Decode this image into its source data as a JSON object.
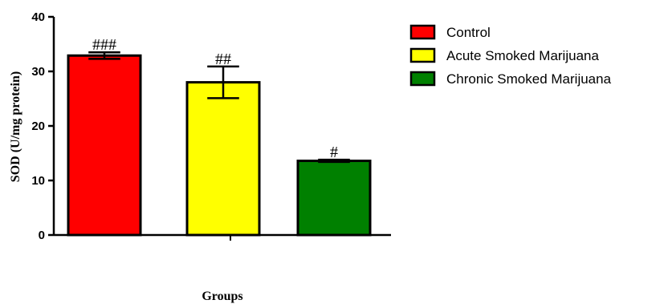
{
  "chart_data": {
    "type": "bar",
    "ylabel": "SOD (U/mg protein)",
    "xlabel": "Groups",
    "ylim": [
      0,
      40
    ],
    "yticks": [
      0,
      10,
      20,
      30,
      40
    ],
    "grid": false,
    "legend_position": "top-right",
    "series": [
      {
        "name": "Control",
        "value": 32.9,
        "error": 0.6,
        "annotation": "###",
        "color": "#ff0000"
      },
      {
        "name": "Acute Smoked Marijuana",
        "value": 28.0,
        "error": 2.9,
        "annotation": "##",
        "color": "#ffff00"
      },
      {
        "name": "Chronic Smoked Marijuana",
        "value": 13.6,
        "error": 0.2,
        "annotation": "#",
        "color": "#008000"
      }
    ]
  }
}
